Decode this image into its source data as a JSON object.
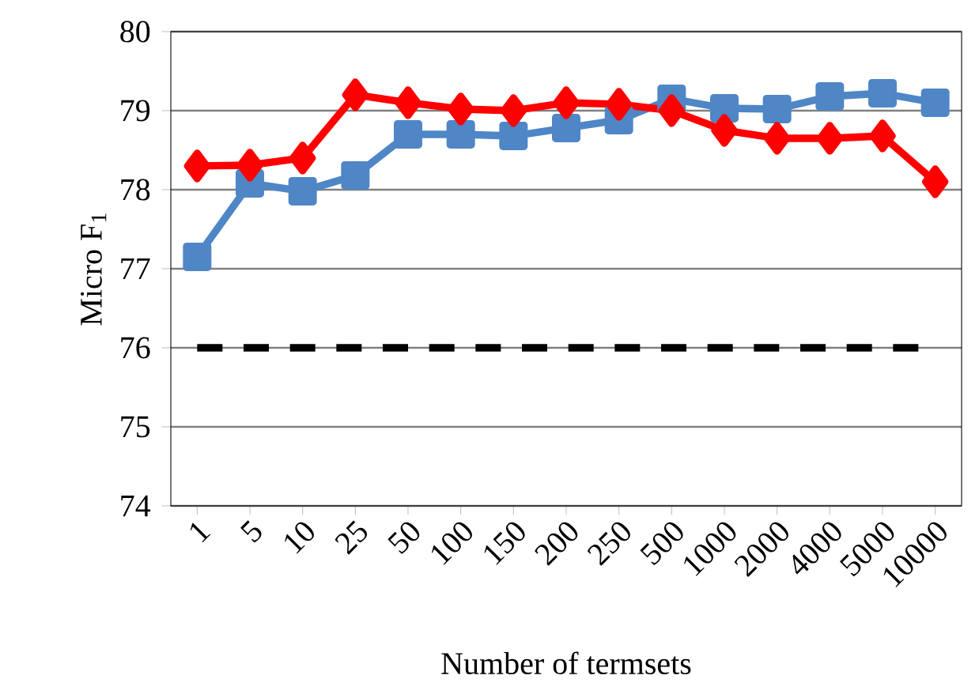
{
  "chart_data": {
    "type": "line",
    "xlabel": "Number of termsets",
    "ylabel": "Micro F$_{1}$",
    "categories": [
      "1",
      "5",
      "10",
      "25",
      "50",
      "100",
      "150",
      "200",
      "250",
      "500",
      "1000",
      "2000",
      "4000",
      "5000",
      "10000"
    ],
    "series": [
      {
        "color": "#ff0000",
        "marker": "diamond",
        "values": [
          78.3,
          78.31,
          78.4,
          79.2,
          79.1,
          79.02,
          79.0,
          79.1,
          79.08,
          79.0,
          78.75,
          78.65,
          78.65,
          78.68,
          78.1
        ]
      },
      {
        "color": "#4f86c6",
        "marker": "square",
        "values": [
          77.15,
          78.08,
          77.98,
          78.18,
          78.7,
          78.7,
          78.68,
          78.78,
          78.88,
          79.15,
          79.03,
          79.02,
          79.18,
          79.22,
          79.1
        ]
      },
      {
        "color": "#000000",
        "marker": "none",
        "line_style": "dashed",
        "values": [
          76,
          76,
          76,
          76,
          76,
          76,
          76,
          76,
          76,
          76,
          76,
          76,
          76,
          76,
          76
        ]
      }
    ],
    "ylim": [
      74,
      80
    ],
    "yticks": [
      74,
      75,
      76,
      77,
      78,
      79,
      80
    ],
    "grid": "y"
  }
}
